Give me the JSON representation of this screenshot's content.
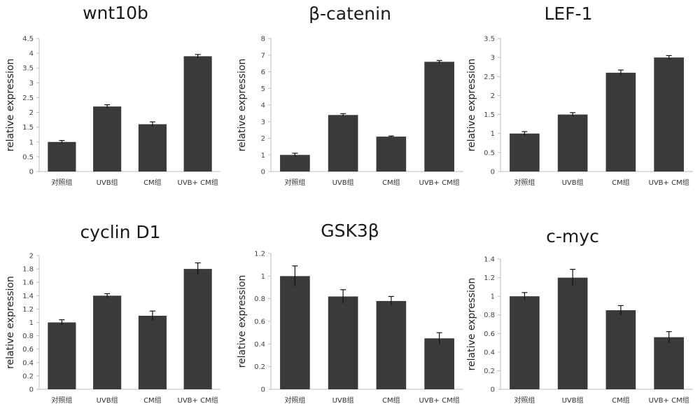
{
  "figure": {
    "bar_color": "#3a3a3a",
    "axis_color": "#bdbdbd"
  },
  "chart_data": [
    {
      "type": "bar",
      "title": "wnt10b",
      "ylabel": "relative expression",
      "categories": [
        "对照组",
        "UVB组",
        "CM组",
        "UVB+ CM组"
      ],
      "values": [
        1.0,
        2.2,
        1.6,
        3.9
      ],
      "errors": [
        0.05,
        0.06,
        0.08,
        0.06
      ],
      "ylim": [
        0,
        4.5
      ],
      "yticks": [
        "0",
        "0.5",
        "1",
        "1.5",
        "2",
        "2.5",
        "3",
        "3.5",
        "4",
        "4.5"
      ],
      "grid": false
    },
    {
      "type": "bar",
      "title": "β-catenin",
      "ylabel": "relative expression",
      "categories": [
        "对照组",
        "UVB组",
        "CM组",
        "UVB+ CM组"
      ],
      "values": [
        1.0,
        3.4,
        2.1,
        6.6
      ],
      "errors": [
        0.1,
        0.08,
        0.04,
        0.08
      ],
      "ylim": [
        0,
        8
      ],
      "yticks": [
        "0",
        "1",
        "2",
        "3",
        "4",
        "5",
        "6",
        "7",
        "8"
      ],
      "grid": false
    },
    {
      "type": "bar",
      "title": "LEF-1",
      "ylabel": "relative expression",
      "categories": [
        "对照组",
        "UVB组",
        "CM组",
        "UVB+ CM组"
      ],
      "values": [
        1.0,
        1.5,
        2.6,
        3.0
      ],
      "errors": [
        0.05,
        0.05,
        0.07,
        0.05
      ],
      "ylim": [
        0,
        3.5
      ],
      "yticks": [
        "0",
        "0.5",
        "1",
        "1.5",
        "2",
        "2.5",
        "3",
        "3.5"
      ],
      "grid": false
    },
    {
      "type": "bar",
      "title": "cyclin D1",
      "ylabel": "relative expression",
      "categories": [
        "对照组",
        "UVB组",
        "CM组",
        "UVB+ CM组"
      ],
      "values": [
        1.0,
        1.4,
        1.1,
        1.8
      ],
      "errors": [
        0.04,
        0.03,
        0.07,
        0.09
      ],
      "ylim": [
        0,
        2
      ],
      "yticks": [
        "0",
        "0.2",
        "0.4",
        "0.6",
        "0.8",
        "1",
        "1.2",
        "1.4",
        "1.6",
        "1.8",
        "2"
      ],
      "grid": false
    },
    {
      "type": "bar",
      "title": "GSK3β",
      "ylabel": "relative expression",
      "categories": [
        "对照组",
        "UVB组",
        "CM组",
        "UVB+ CM组"
      ],
      "values": [
        1.0,
        0.82,
        0.78,
        0.45
      ],
      "errors": [
        0.09,
        0.06,
        0.04,
        0.05
      ],
      "ylim": [
        0,
        1.2
      ],
      "yticks": [
        "0",
        "0.2",
        "0.4",
        "0.6",
        "0.8",
        "1",
        "1.2"
      ],
      "grid": false
    },
    {
      "type": "bar",
      "title": "c-myc",
      "ylabel": "relative expression",
      "categories": [
        "对照组",
        "UVB组",
        "CM组",
        "UVB+ CM组"
      ],
      "values": [
        1.0,
        1.2,
        0.85,
        0.56
      ],
      "errors": [
        0.04,
        0.09,
        0.05,
        0.06
      ],
      "ylim": [
        0,
        1.4
      ],
      "yticks": [
        "0",
        "0.2",
        "0.4",
        "0.6",
        "0.8",
        "1",
        "1.2",
        "1.4"
      ],
      "grid": false
    }
  ]
}
